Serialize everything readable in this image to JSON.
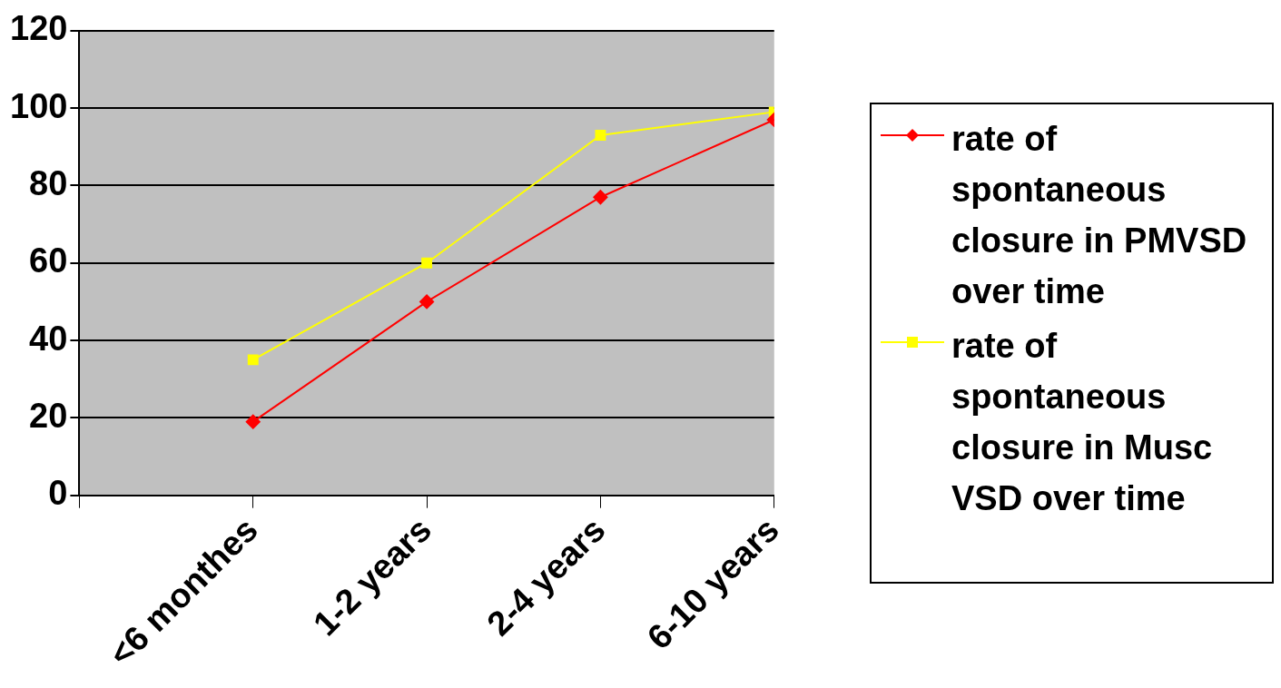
{
  "chart_data": {
    "type": "line",
    "categories": [
      "<6 monthes",
      "1-2 years",
      "2-4 years",
      "6-10 years"
    ],
    "series": [
      {
        "name": "rate of spontaneous closure in PMVSD over time",
        "color": "#ff0000",
        "marker": "diamond",
        "values": [
          19,
          50,
          77,
          97
        ]
      },
      {
        "name": "rate of spontaneous closure in Musc VSD over time",
        "color": "#ffff00",
        "marker": "square",
        "values": [
          35,
          60,
          93,
          99
        ]
      }
    ],
    "ylim": [
      0,
      120
    ],
    "yticks": [
      0,
      20,
      40,
      60,
      80,
      100,
      120
    ],
    "grid": "y",
    "legend": "right"
  }
}
